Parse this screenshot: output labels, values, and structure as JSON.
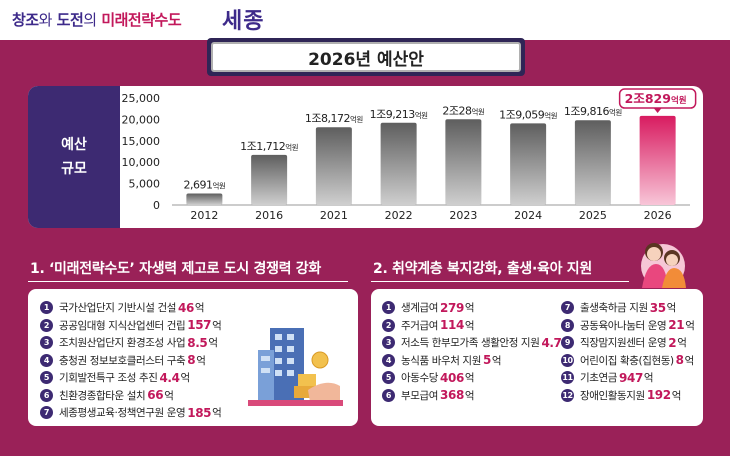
{
  "header": {
    "slogan_part1": "창조",
    "slogan_wa": "와",
    "slogan_part2": "도전",
    "slogan_ui": "의",
    "slogan_part3": "미래전략수도",
    "city": "세종"
  },
  "budget_title": "2026년 예산안",
  "chart_label": {
    "line1": "예산",
    "line2": "규모"
  },
  "colors": {
    "background": "#9a2158",
    "navy": "#3d2a72",
    "accent": "#c2185b",
    "bar_dark": "#6f6f6f",
    "bar_highlight": "#c2185b"
  },
  "chart_data": {
    "type": "bar",
    "title": "예산 규모",
    "categories": [
      "2012",
      "2016",
      "2021",
      "2022",
      "2023",
      "2024",
      "2025",
      "2026"
    ],
    "values": [
      2691,
      11712,
      18172,
      19213,
      20028,
      19059,
      19816,
      20829
    ],
    "data_labels": [
      {
        "main": "2,691",
        "unit": "억원"
      },
      {
        "main": "1조1,712",
        "unit": "억원"
      },
      {
        "main": "1조8,172",
        "unit": "억원"
      },
      {
        "main": "1조9,213",
        "unit": "억원"
      },
      {
        "main": "2조28",
        "unit": "억원"
      },
      {
        "main": "1조9,059",
        "unit": "억원"
      },
      {
        "main": "1조9,816",
        "unit": "억원"
      },
      {
        "main": "2조829",
        "unit": "억원"
      }
    ],
    "yticks": [
      "25,000",
      "20,000",
      "15,000",
      "10,000",
      "5,000",
      "0"
    ],
    "ytick_values": [
      25000,
      20000,
      15000,
      10000,
      5000,
      0
    ],
    "ylim": [
      0,
      25000
    ],
    "highlight_index": 7,
    "xlabel": "",
    "ylabel": ""
  },
  "section1": {
    "title": "1. ‘미래전략수도’ 자생력 제고로 도시 경쟁력 강화",
    "items": [
      {
        "no": "1",
        "text": "국가산업단지 기반시설 건설",
        "amount": "46",
        "unit": "억"
      },
      {
        "no": "2",
        "text": "공공임대형 지식산업센터 건립",
        "amount": "157",
        "unit": "억"
      },
      {
        "no": "3",
        "text": "조치원산업단지 환경조성 사업",
        "amount": "8.5",
        "unit": "억"
      },
      {
        "no": "4",
        "text": "충청권 정보보호클러스터 구축",
        "amount": "8",
        "unit": "억"
      },
      {
        "no": "5",
        "text": "기회발전특구 조성 추진",
        "amount": "4.4",
        "unit": "억"
      },
      {
        "no": "6",
        "text": "친환경종합타운 설치",
        "amount": "66",
        "unit": "억"
      },
      {
        "no": "7",
        "text": "세종평생교육·정책연구원 운영",
        "amount": "185",
        "unit": "억"
      }
    ]
  },
  "section2": {
    "title": "2. 취약계층 복지강화, 출생·육아 지원",
    "items_left": [
      {
        "no": "1",
        "text": "생계급여",
        "amount": "279",
        "unit": "억"
      },
      {
        "no": "2",
        "text": "주거급여",
        "amount": "114",
        "unit": "억"
      },
      {
        "no": "3",
        "text": "저소득 한부모가족 생활안정 지원",
        "amount": "4.7",
        "unit": "억"
      },
      {
        "no": "4",
        "text": "농식품 바우처 지원",
        "amount": "5",
        "unit": "억"
      },
      {
        "no": "5",
        "text": "아동수당",
        "amount": "406",
        "unit": "억"
      },
      {
        "no": "6",
        "text": "부모급여",
        "amount": "368",
        "unit": "억"
      }
    ],
    "items_right": [
      {
        "no": "7",
        "text": "출생축하금 지원",
        "amount": "35",
        "unit": "억"
      },
      {
        "no": "8",
        "text": "공동육아나눔터 운영",
        "amount": "21",
        "unit": "억"
      },
      {
        "no": "9",
        "text": "직장맘지원센터 운영",
        "amount": "2",
        "unit": "억"
      },
      {
        "no": "10",
        "text": "어린이집 확충(집현동)",
        "amount": "8",
        "unit": "억"
      },
      {
        "no": "11",
        "text": "기초연금",
        "amount": "947",
        "unit": "억"
      },
      {
        "no": "12",
        "text": "장애인활동지원",
        "amount": "192",
        "unit": "억"
      }
    ]
  }
}
